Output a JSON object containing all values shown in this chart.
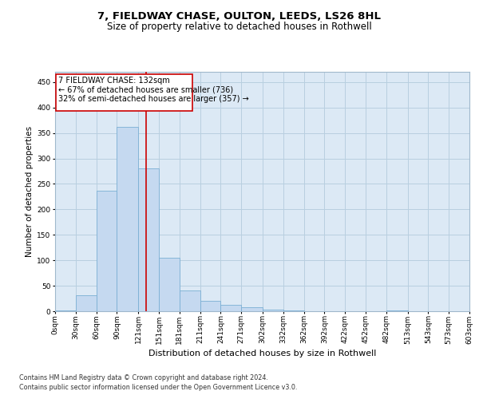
{
  "title1": "7, FIELDWAY CHASE, OULTON, LEEDS, LS26 8HL",
  "title2": "Size of property relative to detached houses in Rothwell",
  "xlabel": "Distribution of detached houses by size in Rothwell",
  "ylabel": "Number of detached properties",
  "footer1": "Contains HM Land Registry data © Crown copyright and database right 2024.",
  "footer2": "Contains public sector information licensed under the Open Government Licence v3.0.",
  "bin_edges": [
    0,
    30,
    60,
    90,
    121,
    151,
    181,
    211,
    241,
    271,
    302,
    332,
    362,
    392,
    422,
    452,
    482,
    513,
    543,
    573,
    603
  ],
  "bin_labels": [
    "0sqm",
    "30sqm",
    "60sqm",
    "90sqm",
    "121sqm",
    "151sqm",
    "181sqm",
    "211sqm",
    "241sqm",
    "271sqm",
    "302sqm",
    "332sqm",
    "362sqm",
    "392sqm",
    "422sqm",
    "452sqm",
    "482sqm",
    "513sqm",
    "543sqm",
    "573sqm",
    "603sqm"
  ],
  "counts": [
    1,
    32,
    236,
    362,
    280,
    105,
    40,
    20,
    13,
    8,
    3,
    2,
    0,
    0,
    0,
    0,
    1,
    0,
    0,
    0
  ],
  "bar_color": "#c5d9f0",
  "bar_edge_color": "#7bafd4",
  "property_line_x": 132,
  "property_line_color": "#cc0000",
  "annotation_box_edge": "#cc0000",
  "annotation_line1": "7 FIELDWAY CHASE: 132sqm",
  "annotation_line2": "← 67% of detached houses are smaller (736)",
  "annotation_line3": "32% of semi-detached houses are larger (357) →",
  "ylim": [
    0,
    470
  ],
  "yticks": [
    0,
    50,
    100,
    150,
    200,
    250,
    300,
    350,
    400,
    450
  ],
  "bg_color": "#ffffff",
  "plot_bg_color": "#dce9f5",
  "grid_color": "#b8cfe0",
  "title1_fontsize": 9.5,
  "title2_fontsize": 8.5,
  "xlabel_fontsize": 8,
  "ylabel_fontsize": 7.5,
  "tick_fontsize": 6.5,
  "ann_fontsize": 7,
  "footer_fontsize": 5.8
}
